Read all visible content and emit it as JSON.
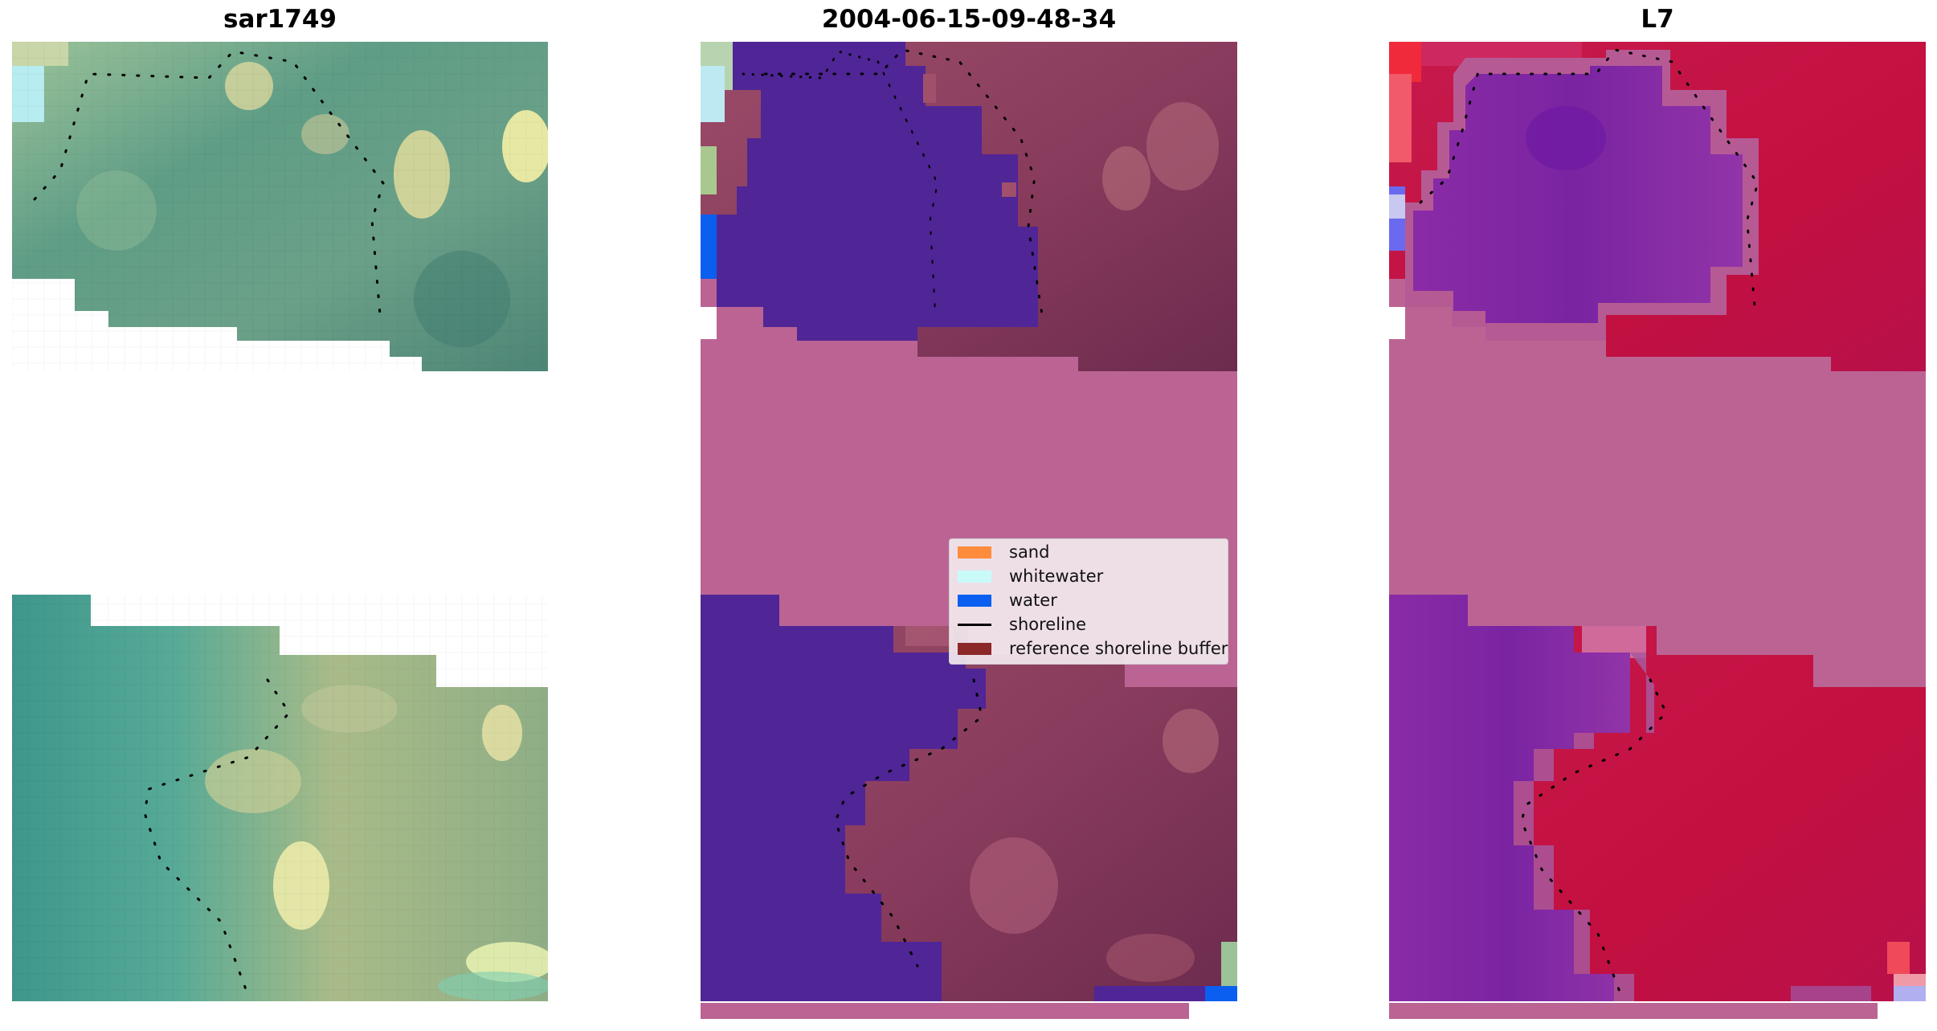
{
  "panels": {
    "left_title": "sar1749",
    "center_title": "2004-06-15-09-48-34",
    "right_title": "L7"
  },
  "legend": {
    "items": [
      {
        "label": "sand",
        "color": "#ff8c3c",
        "kind": "patch"
      },
      {
        "label": "whitewater",
        "color": "#c8fafa",
        "kind": "patch"
      },
      {
        "label": "water",
        "color": "#0a5ff0",
        "kind": "patch"
      },
      {
        "label": "shoreline",
        "color": "#000000",
        "kind": "line"
      },
      {
        "label": "reference shoreline buffer",
        "color": "#8b2828",
        "kind": "patch"
      }
    ]
  },
  "colors": {
    "rgb_vegetation": "#5e9c82",
    "rgb_sand": "#d8d89a",
    "classified_water": "#502596",
    "classified_land": "#8a3c5e",
    "buffer_fill": "#bb6494",
    "index_water": "#7d23a0",
    "index_land": "#c01040",
    "shoreline_dots": "#000000"
  }
}
